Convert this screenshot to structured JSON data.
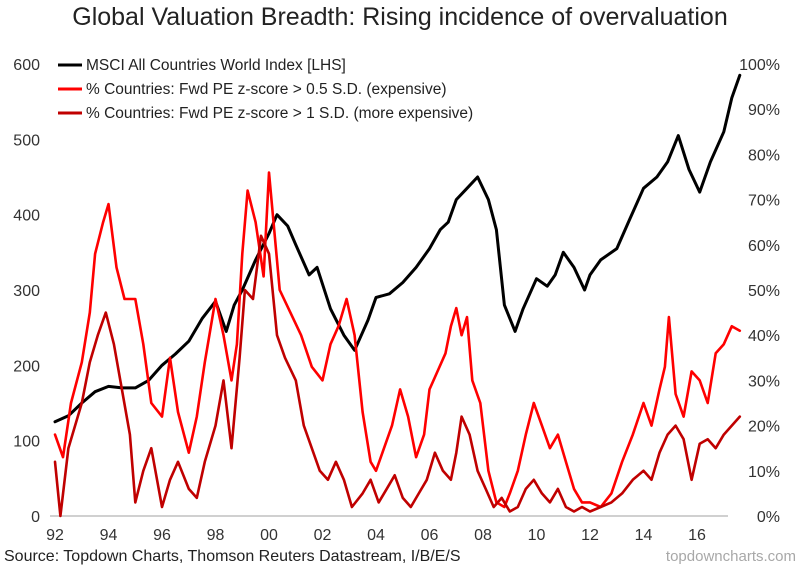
{
  "chart_data": {
    "type": "line",
    "title": "Global Valuation Breadth: Rising incidence of overvaluation",
    "xlabel": "",
    "ylabel_left": "",
    "ylabel_right": "",
    "x_ticks": [
      "92",
      "94",
      "96",
      "98",
      "00",
      "02",
      "04",
      "06",
      "08",
      "10",
      "12",
      "14",
      "16"
    ],
    "x_range": [
      1992,
      2017.6
    ],
    "y_left": {
      "ticks": [
        "0",
        "100",
        "200",
        "300",
        "400",
        "500",
        "600"
      ],
      "range": [
        0,
        600
      ]
    },
    "y_right": {
      "ticks": [
        "0%",
        "10%",
        "20%",
        "30%",
        "40%",
        "50%",
        "60%",
        "70%",
        "80%",
        "90%",
        "100%"
      ],
      "range": [
        0,
        100
      ]
    },
    "grid": false,
    "legend_position": "top-left",
    "series": [
      {
        "name": "MSCI All Countries World Index [LHS]",
        "axis": "left",
        "color": "#000000",
        "x": [
          1992.0,
          1992.5,
          1993.0,
          1993.5,
          1994.0,
          1994.5,
          1995.0,
          1995.5,
          1996.0,
          1996.5,
          1997.0,
          1997.5,
          1998.0,
          1998.4,
          1998.7,
          1999.0,
          1999.5,
          2000.0,
          2000.3,
          2000.7,
          2001.0,
          2001.5,
          2001.8,
          2002.3,
          2002.8,
          2003.2,
          2003.7,
          2004.0,
          2004.5,
          2005.0,
          2005.5,
          2006.0,
          2006.4,
          2006.7,
          2007.0,
          2007.4,
          2007.8,
          2008.2,
          2008.5,
          2008.8,
          2009.2,
          2009.5,
          2010.0,
          2010.4,
          2010.7,
          2011.0,
          2011.4,
          2011.8,
          2012.0,
          2012.4,
          2013.0,
          2013.5,
          2014.0,
          2014.5,
          2014.9,
          2015.3,
          2015.7,
          2016.1,
          2016.5,
          2017.0,
          2017.3,
          2017.6
        ],
        "values": [
          125,
          133,
          150,
          165,
          172,
          170,
          170,
          180,
          200,
          215,
          232,
          262,
          285,
          245,
          280,
          300,
          340,
          375,
          400,
          385,
          360,
          320,
          330,
          275,
          240,
          220,
          260,
          290,
          295,
          310,
          330,
          355,
          380,
          390,
          420,
          435,
          450,
          420,
          380,
          280,
          245,
          275,
          315,
          305,
          320,
          350,
          330,
          300,
          320,
          340,
          355,
          395,
          435,
          450,
          470,
          505,
          460,
          430,
          470,
          510,
          555,
          585
        ]
      },
      {
        "name": "% Countries: Fwd PE z-score > 0.5 S.D. (expensive)",
        "axis": "right",
        "color": "#ff0000",
        "x": [
          1992.0,
          1992.3,
          1992.6,
          1993.0,
          1993.3,
          1993.5,
          1993.8,
          1994.0,
          1994.3,
          1994.6,
          1995.0,
          1995.3,
          1995.6,
          1996.0,
          1996.3,
          1996.6,
          1997.0,
          1997.3,
          1997.6,
          1998.0,
          1998.3,
          1998.6,
          1998.8,
          1999.0,
          1999.2,
          1999.5,
          1999.8,
          2000.0,
          2000.4,
          2000.8,
          2001.2,
          2001.6,
          2002.0,
          2002.3,
          2002.6,
          2002.9,
          2003.2,
          2003.5,
          2003.8,
          2004.0,
          2004.3,
          2004.6,
          2004.9,
          2005.2,
          2005.5,
          2005.8,
          2006.0,
          2006.3,
          2006.6,
          2006.8,
          2007.0,
          2007.2,
          2007.4,
          2007.6,
          2007.9,
          2008.2,
          2008.5,
          2008.8,
          2009.0,
          2009.3,
          2009.6,
          2009.9,
          2010.2,
          2010.5,
          2010.8,
          2011.1,
          2011.4,
          2011.7,
          2012.0,
          2012.4,
          2012.8,
          2013.2,
          2013.6,
          2014.0,
          2014.3,
          2014.6,
          2014.8,
          2014.95,
          2015.2,
          2015.5,
          2015.8,
          2016.1,
          2016.4,
          2016.7,
          2017.0,
          2017.3,
          2017.6
        ],
        "values": [
          18,
          13,
          25,
          34,
          45,
          58,
          65,
          69,
          55,
          48,
          48,
          38,
          25,
          22,
          35,
          23,
          14,
          22,
          34,
          48,
          40,
          30,
          38,
          58,
          72,
          65,
          53,
          76,
          50,
          45,
          40,
          33,
          30,
          38,
          42,
          48,
          40,
          23,
          12,
          10,
          15,
          20,
          28,
          22,
          13,
          18,
          28,
          32,
          36,
          42,
          46,
          40,
          44,
          30,
          25,
          10,
          3,
          2,
          5,
          10,
          18,
          25,
          20,
          15,
          18,
          12,
          6,
          3,
          3,
          2,
          5,
          12,
          18,
          25,
          20,
          28,
          33,
          44,
          27,
          22,
          32,
          30,
          25,
          36,
          38,
          42,
          41
        ]
      },
      {
        "name": "% Countries: Fwd PE z-score > 1 S.D. (more expensive)",
        "axis": "right",
        "color": "#c00000",
        "x": [
          1992.0,
          1992.2,
          1992.5,
          1993.0,
          1993.3,
          1993.6,
          1993.9,
          1994.2,
          1994.5,
          1994.8,
          1995.0,
          1995.3,
          1995.6,
          1996.0,
          1996.3,
          1996.6,
          1997.0,
          1997.3,
          1997.6,
          1998.0,
          1998.3,
          1998.6,
          1998.9,
          1999.1,
          1999.4,
          1999.7,
          2000.0,
          2000.3,
          2000.6,
          2001.0,
          2001.3,
          2001.6,
          2001.9,
          2002.2,
          2002.5,
          2002.8,
          2003.1,
          2003.5,
          2003.8,
          2004.1,
          2004.4,
          2004.7,
          2005.0,
          2005.3,
          2005.6,
          2005.9,
          2006.2,
          2006.5,
          2006.8,
          2007.0,
          2007.2,
          2007.5,
          2007.8,
          2008.1,
          2008.4,
          2008.7,
          2009.0,
          2009.3,
          2009.6,
          2009.9,
          2010.2,
          2010.5,
          2010.8,
          2011.1,
          2011.4,
          2011.7,
          2012.0,
          2012.4,
          2012.8,
          2013.2,
          2013.6,
          2014.0,
          2014.3,
          2014.6,
          2014.9,
          2015.2,
          2015.5,
          2015.8,
          2016.1,
          2016.4,
          2016.7,
          2017.0,
          2017.3,
          2017.6
        ],
        "values": [
          12,
          0,
          15,
          25,
          34,
          40,
          45,
          38,
          28,
          18,
          3,
          10,
          15,
          2,
          8,
          12,
          6,
          4,
          12,
          20,
          30,
          15,
          35,
          50,
          48,
          62,
          58,
          40,
          35,
          30,
          20,
          15,
          10,
          8,
          12,
          8,
          2,
          5,
          8,
          3,
          6,
          9,
          4,
          2,
          5,
          8,
          14,
          10,
          8,
          14,
          22,
          18,
          10,
          6,
          2,
          4,
          1,
          2,
          6,
          8,
          5,
          3,
          6,
          2,
          1,
          2,
          1,
          2,
          3,
          5,
          8,
          10,
          8,
          14,
          18,
          20,
          17,
          8,
          16,
          17,
          15,
          18,
          20,
          22
        ]
      }
    ],
    "annotations": []
  },
  "source_text": "Source: Topdown Charts, Thomson Reuters Datastream, I/B/E/S",
  "watermark": "topdowncharts.com"
}
